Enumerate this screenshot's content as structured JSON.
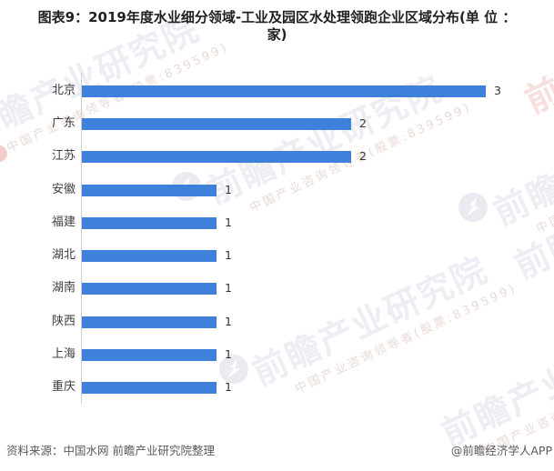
{
  "title": {
    "line1": "图表9：2019年度水业细分领域-工业及园区水处理领跑企业区域分布(单 位 ：",
    "line2": "家)"
  },
  "chart_data": {
    "type": "bar",
    "orientation": "horizontal",
    "title": "图表9：2019年度水业细分领域-工业及园区水处理领跑企业区域分布(单 位 ：家)",
    "categories": [
      "北京",
      "广东",
      "江苏",
      "安徽",
      "福建",
      "湖北",
      "湖南",
      "陕西",
      "上海",
      "重庆"
    ],
    "values": [
      3,
      2,
      2,
      1,
      1,
      1,
      1,
      1,
      1,
      1
    ],
    "value_labels": [
      "3",
      "2",
      "2",
      "1",
      "1",
      "1",
      "1",
      "1",
      "1",
      "1"
    ],
    "xlabel": "",
    "ylabel": "",
    "xlim": [
      0,
      3
    ],
    "grid": false,
    "legend": "none",
    "unit": "家"
  },
  "footer": {
    "source": "资料来源：中国水网 前瞻产业研究院整理",
    "credit": "@前瞻经济学人APP"
  },
  "watermark": {
    "big_text": "前瞻产业研究院",
    "small_text": "中国产业咨询领导者(股票:839599)"
  },
  "colors": {
    "bar": "#3f80db",
    "title_text": "#212121",
    "label_text": "#3d3d3d",
    "footer_text": "#595959",
    "axis": "#cfcfcf",
    "watermark_gray": "#eceef4",
    "watermark_small": "#ead9d5",
    "watermark_pink": "#f6dfdc"
  }
}
